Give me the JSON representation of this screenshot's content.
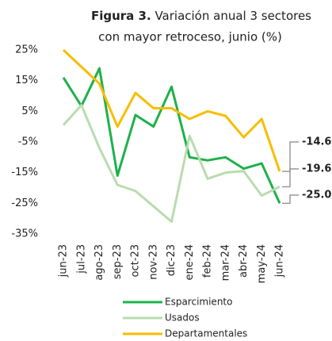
{
  "chart_data": {
    "type": "line",
    "figure_label": "Figura 3.",
    "title": "Variación anual 3 sectores con mayor retroceso, junio (%)",
    "categories": [
      "jun-23",
      "jul-23",
      "ago-23",
      "sep-23",
      "oct-23",
      "nov-23",
      "dic-23",
      "ene-24",
      "feb-24",
      "mar-24",
      "abr-24",
      "may-24",
      "jun-24"
    ],
    "series": [
      {
        "name": "Esparcimiento",
        "color": "#1db14a",
        "values": [
          16,
          6.7,
          19,
          -16,
          3.8,
          0,
          13,
          -10,
          -11,
          -10,
          -13.7,
          -12,
          -25.0
        ],
        "end_label": "-25.0"
      },
      {
        "name": "Usados",
        "color": "#b9dcae",
        "values": [
          0.5,
          7,
          -7,
          -19,
          -21,
          -26,
          -31,
          -3,
          -17,
          -15,
          -14.5,
          -22.5,
          -19.6
        ],
        "end_label": "-19.6"
      },
      {
        "name": "Departamentales",
        "color": "#f8bd00",
        "values": [
          25,
          19.5,
          14,
          0,
          11,
          6,
          6,
          2.5,
          5,
          3.5,
          -3.5,
          2.5,
          -14.6
        ],
        "end_label": "-14.6"
      }
    ],
    "ylim": [
      -35,
      25
    ],
    "yticks": [
      {
        "value": -35,
        "label": "-35%"
      },
      {
        "value": -25,
        "label": "-25%"
      },
      {
        "value": -15,
        "label": "-15%"
      },
      {
        "value": -5,
        "label": "-5%"
      },
      {
        "value": 5,
        "label": "5%"
      },
      {
        "value": 15,
        "label": "15%"
      },
      {
        "value": 25,
        "label": "25%"
      }
    ],
    "grid": false
  }
}
